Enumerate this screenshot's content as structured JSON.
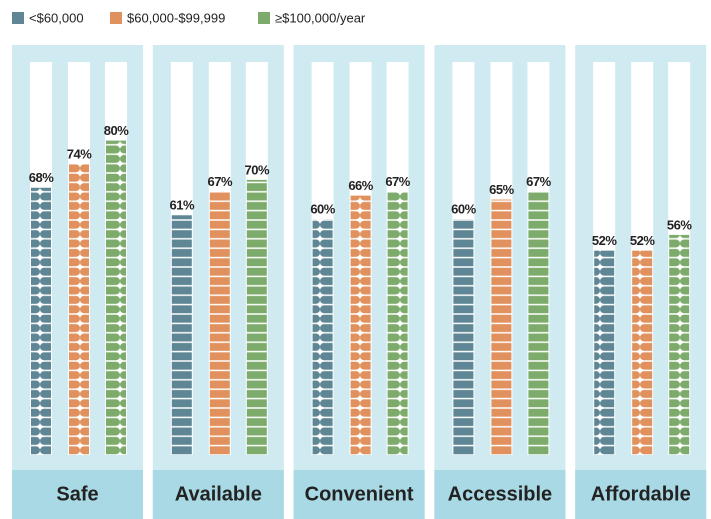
{
  "chart_data": {
    "type": "bar",
    "categories": [
      "Safe",
      "Available",
      "Convenient",
      "Accessible",
      "Affordable"
    ],
    "series": [
      {
        "name": "<$60,000",
        "color": "#5f8694",
        "values": [
          68,
          61,
          60,
          60,
          52
        ],
        "value_labels": [
          "68%",
          "61%",
          "60%",
          "60%",
          "52%"
        ]
      },
      {
        "name": "$60,000-$99,999",
        "color": "#e0915d",
        "values": [
          74,
          67,
          66,
          65,
          52
        ],
        "value_labels": [
          "74%",
          "67%",
          "66%",
          "65%",
          "52%"
        ]
      },
      {
        "name": "≥$100,000/year",
        "color": "#7dab6b",
        "values": [
          80,
          70,
          67,
          67,
          56
        ],
        "value_labels": [
          "80%",
          "70%",
          "67%",
          "67%",
          "56%"
        ]
      }
    ],
    "ylim": [
      0,
      100
    ]
  }
}
